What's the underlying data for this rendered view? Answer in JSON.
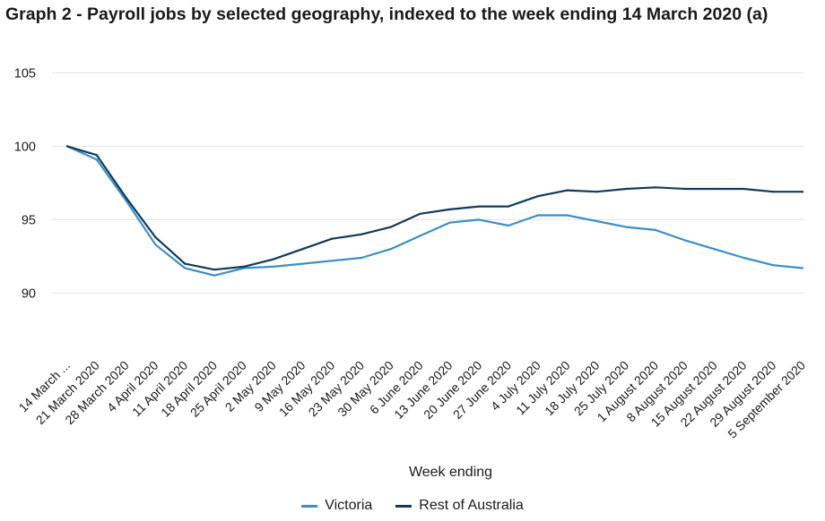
{
  "chart_data": {
    "type": "line",
    "title": "Graph 2 - Payroll jobs by selected geography, indexed to the week ending 14 March 2020 (a)",
    "xlabel": "Week ending",
    "ylabel": "",
    "ylim": [
      86,
      106
    ],
    "yticks": [
      90,
      95,
      100,
      105
    ],
    "grid": true,
    "legend_position": "bottom",
    "categories": [
      "14 March ...",
      "21 March 2020",
      "28 March 2020",
      "4 April 2020",
      "11 April 2020",
      "18 April 2020",
      "25 April 2020",
      "2 May 2020",
      "9 May 2020",
      "16 May 2020",
      "23 May 2020",
      "30 May 2020",
      "6 June 2020",
      "13 June 2020",
      "20 June 2020",
      "27 June 2020",
      "4 July 2020",
      "11 July 2020",
      "18 July 2020",
      "25 July 2020",
      "1 August 2020",
      "8 August 2020",
      "15 August 2020",
      "22 August 2020",
      "29 August 2020",
      "5 September 2020"
    ],
    "series": [
      {
        "name": "Victoria",
        "color": "#3a8fc9",
        "values": [
          100.0,
          99.1,
          96.3,
          93.3,
          91.7,
          91.2,
          91.7,
          91.8,
          92.0,
          92.2,
          92.4,
          93.0,
          93.9,
          94.8,
          95.0,
          94.6,
          95.3,
          95.3,
          94.9,
          94.5,
          94.3,
          93.6,
          93.0,
          92.4,
          91.9,
          91.7
        ]
      },
      {
        "name": "Rest of Australia",
        "color": "#123a5c",
        "values": [
          100.0,
          99.4,
          96.5,
          93.8,
          92.0,
          91.6,
          91.8,
          92.3,
          93.0,
          93.7,
          94.0,
          94.5,
          95.4,
          95.7,
          95.9,
          95.9,
          96.6,
          97.0,
          96.9,
          97.1,
          97.2,
          97.1,
          97.1,
          97.1,
          96.9,
          96.9
        ]
      }
    ],
    "gridline_color": "#e2e2e2",
    "axis_color": "#1a1a1a"
  }
}
